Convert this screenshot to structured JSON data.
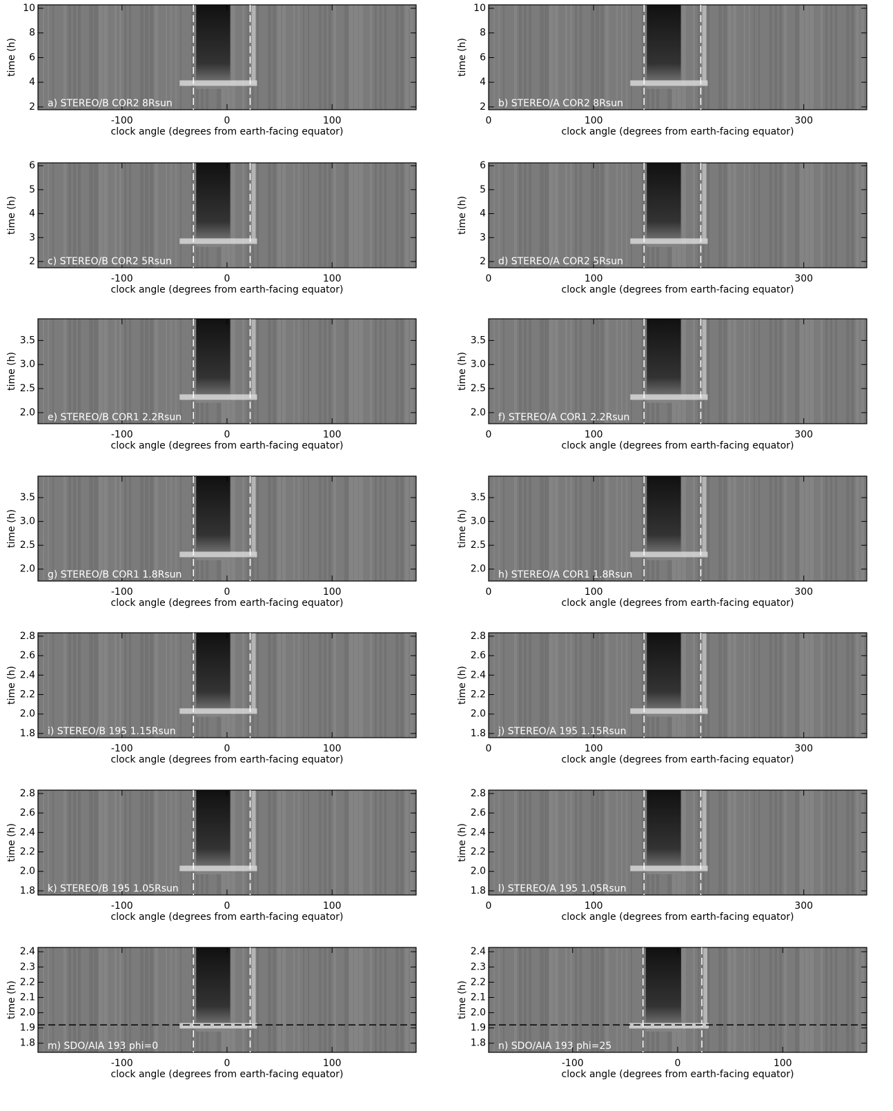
{
  "chart_data": [
    {
      "type": "heatmap",
      "label": "a) STEREO/B COR2 8Rsun",
      "xlabel": "clock angle (degrees from earth-facing equator)",
      "ylabel": "time (h)",
      "xlim": [
        -180,
        180
      ],
      "xticks": [
        -100,
        0,
        100
      ],
      "ylim": [
        1.77,
        10.28
      ],
      "yticks": [
        2,
        4,
        6,
        8,
        10
      ],
      "vlines": [
        -32,
        22
      ]
    },
    {
      "type": "heatmap",
      "label": "b) STEREO/A COR2 8Rsun",
      "xlabel": "clock angle (degrees from earth-facing equator)",
      "ylabel": "time (h)",
      "xlim": [
        0,
        360
      ],
      "xticks": [
        0,
        100,
        300
      ],
      "ylim": [
        1.77,
        10.28
      ],
      "yticks": [
        2,
        4,
        6,
        8,
        10
      ],
      "vlines": [
        148,
        202
      ]
    },
    {
      "type": "heatmap",
      "label": "c) STEREO/B COR2 5Rsun",
      "xlabel": "clock angle (degrees from earth-facing equator)",
      "ylabel": "time (h)",
      "xlim": [
        -180,
        180
      ],
      "xticks": [
        -100,
        0,
        100
      ],
      "ylim": [
        1.74,
        6.12
      ],
      "yticks": [
        2,
        3,
        4,
        5,
        6
      ],
      "vlines": [
        -32,
        22
      ]
    },
    {
      "type": "heatmap",
      "label": "d) STEREO/A COR2 5Rsun",
      "xlabel": "clock angle (degrees from earth-facing equator)",
      "ylabel": "time (h)",
      "xlim": [
        0,
        360
      ],
      "xticks": [
        0,
        100,
        300
      ],
      "ylim": [
        1.74,
        6.12
      ],
      "yticks": [
        2,
        3,
        4,
        5,
        6
      ],
      "vlines": [
        148,
        202
      ]
    },
    {
      "type": "heatmap",
      "label": "e) STEREO/B COR1 2.2Rsun",
      "xlabel": "clock angle (degrees from earth-facing equator)",
      "ylabel": "time (h)",
      "xlim": [
        -180,
        180
      ],
      "xticks": [
        -100,
        0,
        100
      ],
      "ylim": [
        1.77,
        3.95
      ],
      "yticks": [
        {
          "value": 2,
          "label": "2.0"
        },
        2.5,
        {
          "value": 3,
          "label": "3.0"
        },
        3.5
      ],
      "vlines": [
        -32,
        22
      ]
    },
    {
      "type": "heatmap",
      "label": "f) STEREO/A COR1 2.2Rsun",
      "xlabel": "clock angle (degrees from earth-facing equator)",
      "ylabel": "time (h)",
      "xlim": [
        0,
        360
      ],
      "xticks": [
        0,
        100,
        300
      ],
      "ylim": [
        1.77,
        3.95
      ],
      "yticks": [
        {
          "value": 2,
          "label": "2.0"
        },
        2.5,
        {
          "value": 3,
          "label": "3.0"
        },
        3.5
      ],
      "vlines": [
        148,
        202
      ]
    },
    {
      "type": "heatmap",
      "label": "g) STEREO/B COR1 1.8Rsun",
      "xlabel": "clock angle (degrees from earth-facing equator)",
      "ylabel": "time (h)",
      "xlim": [
        -180,
        180
      ],
      "xticks": [
        -100,
        0,
        100
      ],
      "ylim": [
        1.75,
        3.95
      ],
      "yticks": [
        {
          "value": 2,
          "label": "2.0"
        },
        2.5,
        {
          "value": 3,
          "label": "3.0"
        },
        3.5
      ],
      "vlines": [
        -32,
        22
      ]
    },
    {
      "type": "heatmap",
      "label": "h) STEREO/A COR1 1.8Rsun",
      "xlabel": "clock angle (degrees from earth-facing equator)",
      "ylabel": "time (h)",
      "xlim": [
        0,
        360
      ],
      "xticks": [
        0,
        100,
        300
      ],
      "ylim": [
        1.75,
        3.95
      ],
      "yticks": [
        {
          "value": 2,
          "label": "2.0"
        },
        2.5,
        {
          "value": 3,
          "label": "3.0"
        },
        3.5
      ],
      "vlines": [
        148,
        202
      ]
    },
    {
      "type": "heatmap",
      "label": "i) STEREO/B 195 1.15Rsun",
      "xlabel": "clock angle (degrees from earth-facing equator)",
      "ylabel": "time (h)",
      "xlim": [
        -180,
        180
      ],
      "xticks": [
        -100,
        0,
        100
      ],
      "ylim": [
        1.757,
        2.835
      ],
      "yticks": [
        1.8,
        {
          "value": 2,
          "label": "2.0"
        },
        2.2,
        2.4,
        2.6,
        2.8
      ],
      "vlines": [
        -32,
        22
      ]
    },
    {
      "type": "heatmap",
      "label": "j) STEREO/A 195 1.15Rsun",
      "xlabel": "clock angle (degrees from earth-facing equator)",
      "ylabel": "time (h)",
      "xlim": [
        0,
        360
      ],
      "xticks": [
        0,
        100,
        300
      ],
      "ylim": [
        1.757,
        2.835
      ],
      "yticks": [
        1.8,
        {
          "value": 2,
          "label": "2.0"
        },
        2.2,
        2.4,
        2.6,
        2.8
      ],
      "vlines": [
        148,
        202
      ]
    },
    {
      "type": "heatmap",
      "label": "k) STEREO/B 195 1.05Rsun",
      "xlabel": "clock angle (degrees from earth-facing equator)",
      "ylabel": "time (h)",
      "xlim": [
        -180,
        180
      ],
      "xticks": [
        -100,
        0,
        100
      ],
      "ylim": [
        1.757,
        2.835
      ],
      "yticks": [
        1.8,
        {
          "value": 2,
          "label": "2.0"
        },
        2.2,
        2.4,
        2.6,
        2.8
      ],
      "vlines": [
        -32,
        22
      ]
    },
    {
      "type": "heatmap",
      "label": "l) STEREO/A 195 1.05Rsun",
      "xlabel": "clock angle (degrees from earth-facing equator)",
      "ylabel": "time (h)",
      "xlim": [
        0,
        360
      ],
      "xticks": [
        0,
        100,
        300
      ],
      "ylim": [
        1.757,
        2.835
      ],
      "yticks": [
        1.8,
        {
          "value": 2,
          "label": "2.0"
        },
        2.2,
        2.4,
        2.6,
        2.8
      ],
      "vlines": [
        148,
        202
      ]
    },
    {
      "type": "heatmap",
      "label": "m) SDO/AIA 193 phi=0",
      "xlabel": "clock angle (degrees from earth-facing equator)",
      "ylabel": "time (h)",
      "xlim": [
        -180,
        180
      ],
      "xticks": [
        -100,
        0,
        100
      ],
      "ylim": [
        1.74,
        2.428
      ],
      "yticks": [
        1.8,
        1.9,
        {
          "value": 2,
          "label": "2.0"
        },
        2.1,
        2.2,
        2.3,
        2.4
      ],
      "vlines": [
        -32,
        22
      ],
      "hline": 1.92
    },
    {
      "type": "heatmap",
      "label": "n) SDO/AIA 193 phi=25",
      "xlabel": "clock angle (degrees from earth-facing equator)",
      "ylabel": "time (h)",
      "xlim": [
        -180,
        180
      ],
      "xticks": [
        -100,
        0,
        100
      ],
      "ylim": [
        1.74,
        2.428
      ],
      "yticks": [
        1.8,
        1.9,
        {
          "value": 2,
          "label": "2.0"
        },
        2.1,
        2.2,
        2.3,
        2.4
      ],
      "vlines": [
        -33,
        23
      ],
      "hline": 1.92
    }
  ]
}
